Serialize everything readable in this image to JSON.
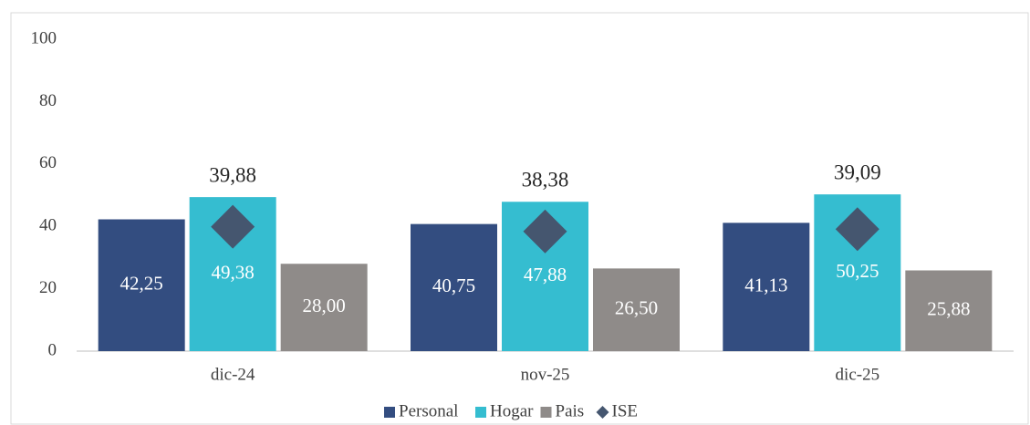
{
  "chart_data": {
    "type": "bar",
    "categories": [
      "dic-24",
      "nov-25",
      "dic-25"
    ],
    "series": [
      {
        "name": "Personal",
        "color": "#334d80",
        "values": [
          42.25,
          40.75,
          41.13
        ],
        "value_labels": [
          "42,25",
          "40,75",
          "41,13"
        ]
      },
      {
        "name": "Hogar",
        "color": "#35bdd0",
        "values": [
          49.38,
          47.88,
          50.25
        ],
        "value_labels": [
          "49,38",
          "47,88",
          "50,25"
        ]
      },
      {
        "name": "Pais",
        "color": "#8f8b89",
        "values": [
          28.0,
          26.5,
          25.88
        ],
        "value_labels": [
          "28,00",
          "26,50",
          "25,88"
        ]
      },
      {
        "name": "ISE",
        "color": "#45566f",
        "marker": "diamond",
        "values": [
          39.88,
          38.38,
          39.09
        ],
        "value_labels": [
          "39,88",
          "38,38",
          "39,09"
        ]
      }
    ],
    "ylim": [
      0,
      100
    ],
    "yticks": [
      0,
      20,
      40,
      60,
      80,
      100
    ],
    "grid": false,
    "legend": "bottom"
  }
}
